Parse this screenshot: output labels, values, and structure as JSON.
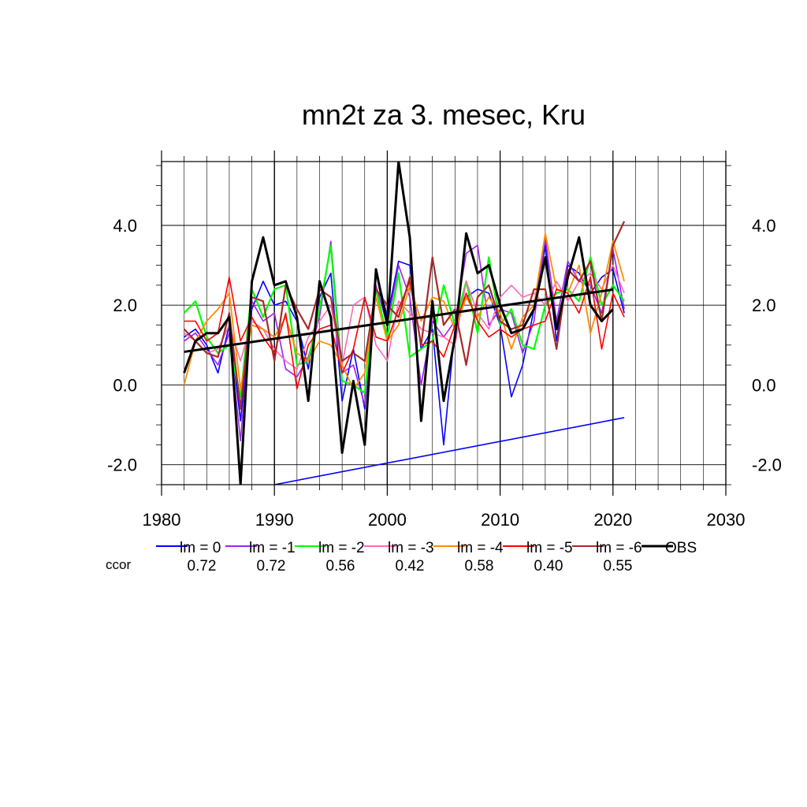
{
  "chart_data": {
    "type": "line",
    "title": "mn2t za 3. mesec, Kru",
    "xlabel": "",
    "ylabel": "",
    "xlim": [
      1980,
      2030
    ],
    "ylim": [
      -2.5,
      5.6
    ],
    "x_ticks": [
      1980,
      1990,
      2000,
      2010,
      2020,
      2030
    ],
    "y_ticks": [
      -2.0,
      0.0,
      2.0,
      4.0
    ],
    "y_tick_labels": [
      "-2.0",
      "0.0",
      "2.0",
      "4.0"
    ],
    "grid": true,
    "legend_position": "bottom",
    "ccor_label": "ccor",
    "x": [
      1982,
      1983,
      1984,
      1985,
      1986,
      1987,
      1988,
      1989,
      1990,
      1991,
      1992,
      1993,
      1994,
      1995,
      1996,
      1997,
      1998,
      1999,
      2000,
      2001,
      2002,
      2003,
      2004,
      2005,
      2006,
      2007,
      2008,
      2009,
      2010,
      2011,
      2012,
      2013,
      2014,
      2015,
      2016,
      2017,
      2018,
      2019,
      2020,
      2021
    ],
    "series": [
      {
        "name": "lm = 0",
        "ccor": "0.72",
        "color": "#0000ff",
        "width": 1.6,
        "values": [
          1.2,
          1.4,
          1.0,
          0.3,
          1.5,
          -0.9,
          1.9,
          2.6,
          2.0,
          2.1,
          1.6,
          0.4,
          2.2,
          2.8,
          -0.4,
          0.9,
          -0.6,
          2.9,
          1.7,
          3.1,
          3.0,
          0.9,
          1.4,
          -1.5,
          1.4,
          2.2,
          2.4,
          2.3,
          1.5,
          -0.3,
          0.5,
          1.9,
          3.5,
          1.1,
          3.0,
          2.8,
          2.3,
          2.7,
          2.9,
          1.8
        ]
      },
      {
        "name": "lm = -1",
        "ccor": "0.72",
        "color": "#a020f0",
        "width": 1.6,
        "values": [
          1.1,
          1.3,
          0.9,
          0.5,
          1.3,
          -1.4,
          2.1,
          1.6,
          1.8,
          0.4,
          0.2,
          0.7,
          1.7,
          3.6,
          0.3,
          0.5,
          -0.5,
          2.5,
          1.5,
          3.0,
          2.2,
          0.0,
          1.6,
          1.2,
          1.6,
          3.3,
          3.5,
          1.5,
          1.9,
          1.8,
          0.8,
          1.6,
          3.7,
          1.6,
          3.1,
          2.6,
          2.5,
          1.8,
          3.4,
          1.9
        ]
      },
      {
        "name": "lm = -2",
        "ccor": "0.56",
        "color": "#00ff00",
        "width": 2.2,
        "values": [
          1.8,
          2.1,
          1.2,
          0.8,
          1.0,
          -0.3,
          2.4,
          1.7,
          2.4,
          2.5,
          0.5,
          0.6,
          1.9,
          3.5,
          0.1,
          0.0,
          -0.2,
          2.4,
          1.2,
          2.8,
          0.7,
          0.9,
          1.1,
          2.5,
          1.5,
          2.6,
          1.3,
          3.2,
          1.5,
          1.9,
          1.0,
          0.9,
          2.0,
          2.3,
          2.4,
          2.1,
          3.2,
          2.0,
          2.5,
          2.1
        ]
      },
      {
        "name": "lm = -3",
        "ccor": "0.42",
        "color": "#ff69b4",
        "width": 1.6,
        "values": [
          1.3,
          1.1,
          0.8,
          0.9,
          1.5,
          0.6,
          1.6,
          1.4,
          0.9,
          0.6,
          0.4,
          1.2,
          1.6,
          2.0,
          0.5,
          2.0,
          2.2,
          1.0,
          0.6,
          2.1,
          1.8,
          1.4,
          1.3,
          1.2,
          1.0,
          2.6,
          1.8,
          1.4,
          2.2,
          2.5,
          2.2,
          2.3,
          2.0,
          2.6,
          2.1,
          2.6,
          2.8,
          2.4,
          3.0,
          2.3
        ]
      },
      {
        "name": "lm = -4",
        "ccor": "0.58",
        "color": "#ff8c00",
        "width": 1.8,
        "values": [
          0.0,
          1.1,
          1.6,
          1.9,
          2.3,
          -0.1,
          1.5,
          1.4,
          1.2,
          1.7,
          0.8,
          0.6,
          1.1,
          1.0,
          0.5,
          -0.1,
          0.3,
          2.2,
          1.1,
          1.5,
          2.5,
          1.6,
          2.2,
          2.1,
          1.4,
          2.2,
          1.7,
          2.2,
          1.8,
          0.9,
          1.7,
          2.0,
          3.8,
          2.4,
          2.3,
          3.0,
          1.3,
          2.3,
          3.6,
          2.6
        ]
      },
      {
        "name": "lm = -5",
        "ccor": "0.40",
        "color": "#ff0000",
        "width": 1.6,
        "values": [
          1.6,
          1.6,
          1.1,
          1.3,
          2.7,
          1.1,
          1.7,
          1.2,
          0.8,
          1.8,
          -0.1,
          1.0,
          1.4,
          1.5,
          0.3,
          0.9,
          2.2,
          1.2,
          1.1,
          1.9,
          2.6,
          1.0,
          1.1,
          0.7,
          1.5,
          2.3,
          1.6,
          1.2,
          1.4,
          1.2,
          1.4,
          1.5,
          1.6,
          2.4,
          2.3,
          1.8,
          2.7,
          0.9,
          2.3,
          1.7
        ]
      },
      {
        "name": "lm = -6",
        "ccor": "0.55",
        "color": "#a52a2a",
        "width": 2.2,
        "values": [
          1.4,
          1.1,
          0.8,
          0.7,
          1.8,
          -0.6,
          2.2,
          2.1,
          0.6,
          2.5,
          1.9,
          1.4,
          2.4,
          2.2,
          0.6,
          0.8,
          0.6,
          2.4,
          2.0,
          1.7,
          2.7,
          1.0,
          3.2,
          1.5,
          1.9,
          0.5,
          2.2,
          2.5,
          1.6,
          1.4,
          1.5,
          2.4,
          2.4,
          0.9,
          2.9,
          2.6,
          3.1,
          1.6,
          3.5,
          4.1
        ]
      },
      {
        "name": "OBS",
        "ccor": "",
        "color": "#000000",
        "width": 3,
        "values": [
          0.3,
          1.1,
          1.3,
          1.3,
          1.7,
          -2.5,
          2.6,
          3.7,
          2.5,
          2.6,
          1.7,
          -0.4,
          2.6,
          1.7,
          -1.7,
          0.1,
          -1.5,
          2.9,
          1.5,
          5.6,
          3.7,
          -0.9,
          2.1,
          -0.4,
          1.2,
          3.8,
          2.8,
          3.0,
          2.0,
          1.3,
          1.4,
          1.9,
          3.2,
          1.4,
          2.7,
          3.7,
          2.0,
          1.6,
          1.9,
          null
        ]
      }
    ],
    "trend_lines": [
      {
        "name": "OBS trend",
        "color": "#000000",
        "width": 3,
        "x": [
          1982,
          2020
        ],
        "y": [
          0.83,
          2.39
        ]
      },
      {
        "name": "lm = 0 trend",
        "color": "#0000ff",
        "width": 1.6,
        "x": [
          1990,
          2021
        ],
        "y": [
          -2.5,
          -0.82
        ]
      }
    ]
  }
}
